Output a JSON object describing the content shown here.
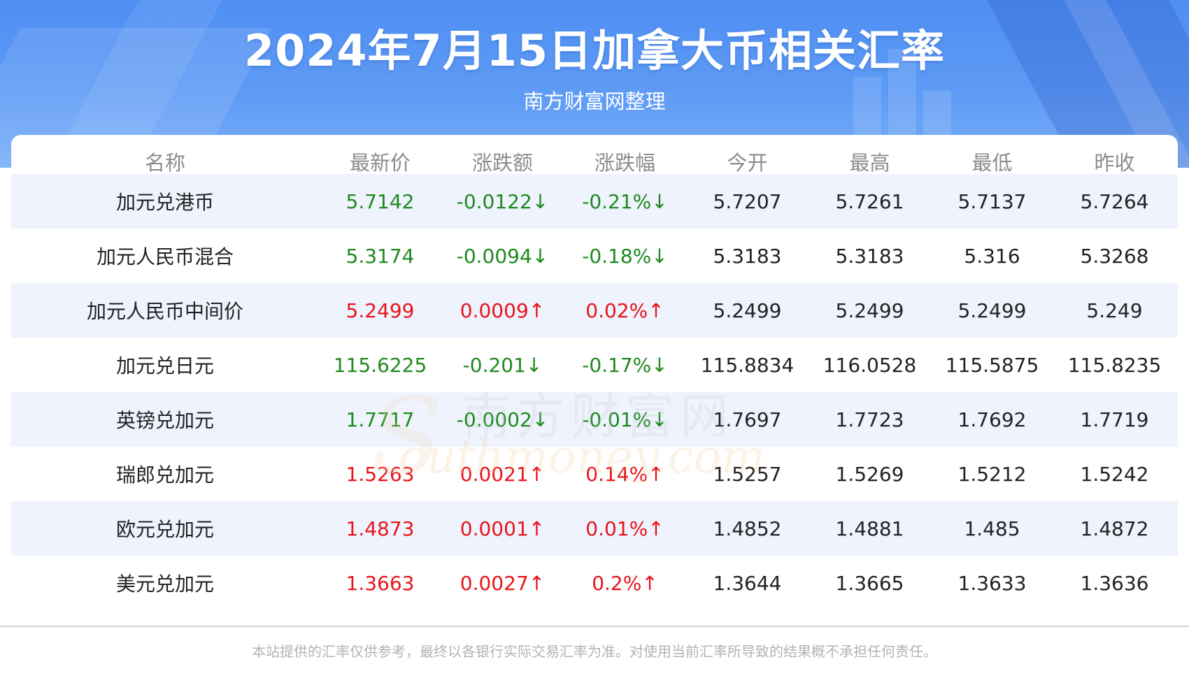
{
  "header": {
    "title": "2024年7月15日加拿大币相关汇率",
    "subtitle": "南方财富网整理"
  },
  "table": {
    "columns": [
      "名称",
      "最新价",
      "涨跌额",
      "涨跌幅",
      "今开",
      "最高",
      "最低",
      "昨收"
    ],
    "rows": [
      {
        "name": "加元兑港币",
        "latest": "5.7142",
        "change": "-0.0122↓",
        "pct": "-0.21%↓",
        "open": "5.7207",
        "high": "5.7261",
        "low": "5.7137",
        "prev": "5.7264",
        "trend": "down"
      },
      {
        "name": "加元人民币混合",
        "latest": "5.3174",
        "change": "-0.0094↓",
        "pct": "-0.18%↓",
        "open": "5.3183",
        "high": "5.3183",
        "low": "5.316",
        "prev": "5.3268",
        "trend": "down"
      },
      {
        "name": "加元人民币中间价",
        "latest": "5.2499",
        "change": "0.0009↑",
        "pct": "0.02%↑",
        "open": "5.2499",
        "high": "5.2499",
        "low": "5.2499",
        "prev": "5.249",
        "trend": "up"
      },
      {
        "name": "加元兑日元",
        "latest": "115.6225",
        "change": "-0.201↓",
        "pct": "-0.17%↓",
        "open": "115.8834",
        "high": "116.0528",
        "low": "115.5875",
        "prev": "115.8235",
        "trend": "down"
      },
      {
        "name": "英镑兑加元",
        "latest": "1.7717",
        "change": "-0.0002↓",
        "pct": "-0.01%↓",
        "open": "1.7697",
        "high": "1.7723",
        "low": "1.7692",
        "prev": "1.7719",
        "trend": "down"
      },
      {
        "name": "瑞郎兑加元",
        "latest": "1.5263",
        "change": "0.0021↑",
        "pct": "0.14%↑",
        "open": "1.5257",
        "high": "1.5269",
        "low": "1.5212",
        "prev": "1.5242",
        "trend": "up"
      },
      {
        "name": "欧元兑加元",
        "latest": "1.4873",
        "change": "0.0001↑",
        "pct": "0.01%↑",
        "open": "1.4852",
        "high": "1.4881",
        "low": "1.485",
        "prev": "1.4872",
        "trend": "up"
      },
      {
        "name": "美元兑加元",
        "latest": "1.3663",
        "change": "0.0027↑",
        "pct": "0.2%↑",
        "open": "1.3644",
        "high": "1.3665",
        "low": "1.3633",
        "prev": "1.3636",
        "trend": "up"
      }
    ]
  },
  "watermark": {
    "cn": "南方财富网",
    "en": "outhmoney.com",
    "s": "S"
  },
  "footer": {
    "disclaimer": "本站提供的汇率仅供参考，最终以各银行实际交易汇率为准。对使用当前汇率所导致的结果概不承担任何责任。"
  },
  "colors": {
    "up": "#e8141b",
    "down": "#1e8a1e",
    "header_bg": "#5e9bf5",
    "row_shade": "#eef3fd"
  }
}
